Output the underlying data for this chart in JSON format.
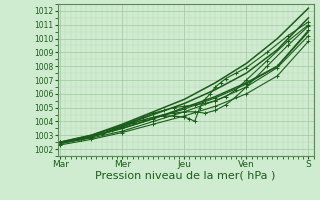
{
  "background_color": "#d0ecd0",
  "plot_bg_color": "#d0ecd0",
  "grid_color": "#a0c8a0",
  "grid_color_minor": "#b8d8b8",
  "line_color": "#1a5c1a",
  "xlabel": "Pression niveau de la mer( hPa )",
  "xlabel_fontsize": 8,
  "ylim": [
    1001.5,
    1012.5
  ],
  "yticks": [
    1002,
    1003,
    1004,
    1005,
    1006,
    1007,
    1008,
    1009,
    1010,
    1011,
    1012
  ],
  "xtick_labels": [
    "Mar",
    "Mer",
    "Jeu",
    "Ven",
    "S"
  ],
  "xtick_positions": [
    0,
    24,
    48,
    72,
    96
  ],
  "xlim": [
    -1,
    98
  ],
  "figsize": [
    3.2,
    2.0
  ],
  "dpi": 100,
  "lines": [
    {
      "comment": "straight line - top boundary, nearly linear from 1002.5 to 1012.2",
      "x": [
        0,
        12,
        24,
        36,
        48,
        60,
        72,
        84,
        96
      ],
      "y": [
        1002.5,
        1003.0,
        1003.8,
        1004.7,
        1005.6,
        1006.8,
        1008.2,
        1010.0,
        1012.2
      ],
      "lw": 1.1,
      "marker": null
    },
    {
      "comment": "straight line - upper boundary",
      "x": [
        0,
        12,
        24,
        36,
        48,
        60,
        72,
        84,
        96
      ],
      "y": [
        1002.5,
        1003.0,
        1003.7,
        1004.5,
        1005.3,
        1006.3,
        1007.5,
        1009.2,
        1011.5
      ],
      "lw": 1.1,
      "marker": null
    },
    {
      "comment": "straight line - lower boundary almost linear",
      "x": [
        0,
        12,
        24,
        36,
        48,
        60,
        72,
        84,
        96
      ],
      "y": [
        1002.4,
        1002.9,
        1003.5,
        1004.2,
        1005.0,
        1005.8,
        1006.8,
        1008.0,
        1010.5
      ],
      "lw": 1.1,
      "marker": null
    },
    {
      "comment": "dotted line with dip - goes low around Jeu area",
      "x": [
        0,
        8,
        16,
        20,
        24,
        28,
        32,
        36,
        40,
        44,
        48,
        52,
        56,
        60,
        64,
        68,
        72,
        80,
        88,
        96
      ],
      "y": [
        1002.5,
        1002.7,
        1003.1,
        1003.4,
        1003.7,
        1004.0,
        1004.3,
        1004.6,
        1004.8,
        1005.0,
        1005.1,
        1005.2,
        1005.3,
        1005.5,
        1005.8,
        1006.3,
        1007.0,
        1008.4,
        1009.8,
        1011.0
      ],
      "lw": 0.8,
      "marker": "+"
    },
    {
      "comment": "curved line dips down around Jeu-Ven",
      "x": [
        0,
        8,
        16,
        24,
        32,
        36,
        40,
        44,
        48,
        52,
        56,
        60,
        64,
        68,
        72,
        80,
        88,
        96
      ],
      "y": [
        1002.5,
        1002.7,
        1003.1,
        1003.6,
        1004.1,
        1004.3,
        1004.5,
        1004.6,
        1004.7,
        1004.7,
        1004.6,
        1004.8,
        1005.2,
        1005.8,
        1006.5,
        1008.0,
        1009.5,
        1010.9
      ],
      "lw": 0.8,
      "marker": "+"
    },
    {
      "comment": "curved line with big dip loop around Jeu",
      "x": [
        0,
        8,
        16,
        24,
        28,
        32,
        36,
        40,
        44,
        48,
        50,
        52,
        54,
        56,
        58,
        60,
        62,
        64,
        68,
        72,
        80,
        88,
        96
      ],
      "y": [
        1002.5,
        1002.7,
        1003.1,
        1003.6,
        1003.9,
        1004.1,
        1004.3,
        1004.4,
        1004.4,
        1004.3,
        1004.2,
        1004.0,
        1005.0,
        1005.6,
        1006.0,
        1006.5,
        1006.8,
        1007.1,
        1007.5,
        1007.9,
        1009.0,
        1010.2,
        1011.2
      ],
      "lw": 0.8,
      "marker": "+"
    },
    {
      "comment": "bottom straight line",
      "x": [
        0,
        12,
        24,
        36,
        48,
        60,
        72,
        84,
        96
      ],
      "y": [
        1002.3,
        1002.7,
        1003.2,
        1003.8,
        1004.4,
        1005.1,
        1006.0,
        1007.3,
        1009.8
      ],
      "lw": 0.8,
      "marker": "+"
    },
    {
      "comment": "another line",
      "x": [
        0,
        12,
        24,
        36,
        48,
        60,
        72,
        84,
        96
      ],
      "y": [
        1002.4,
        1002.8,
        1003.3,
        1004.0,
        1004.7,
        1005.5,
        1006.5,
        1007.9,
        1010.2
      ],
      "lw": 0.8,
      "marker": "+"
    },
    {
      "comment": "middle straight line",
      "x": [
        0,
        12,
        24,
        36,
        48,
        60,
        72,
        84,
        96
      ],
      "y": [
        1002.5,
        1002.9,
        1003.5,
        1004.2,
        1004.9,
        1005.7,
        1006.7,
        1008.0,
        1010.6
      ],
      "lw": 0.8,
      "marker": "+"
    }
  ]
}
